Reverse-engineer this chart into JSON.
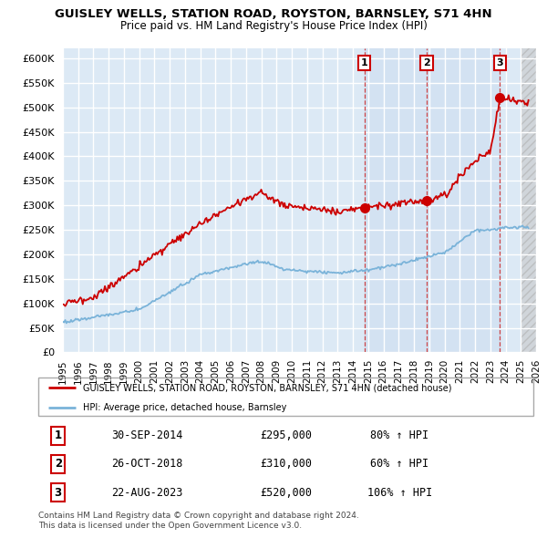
{
  "title": "GUISLEY WELLS, STATION ROAD, ROYSTON, BARNSLEY, S71 4HN",
  "subtitle": "Price paid vs. HM Land Registry's House Price Index (HPI)",
  "ylim": [
    0,
    620000
  ],
  "yticks": [
    0,
    50000,
    100000,
    150000,
    200000,
    250000,
    300000,
    350000,
    400000,
    450000,
    500000,
    550000,
    600000
  ],
  "xlim_start": 1995.0,
  "xlim_end": 2026.0,
  "plot_bg_color": "#dce9f5",
  "grid_color": "#ffffff",
  "sales": [
    {
      "label": "1",
      "date": "30-SEP-2014",
      "year": 2014.75,
      "price": 295000,
      "pct": "80%"
    },
    {
      "label": "2",
      "date": "26-OCT-2018",
      "year": 2018.83,
      "price": 310000,
      "pct": "60%"
    },
    {
      "label": "3",
      "date": "22-AUG-2023",
      "year": 2023.64,
      "price": 520000,
      "pct": "106%"
    }
  ],
  "red_line_color": "#cc0000",
  "blue_line_color": "#7ab3d9",
  "dashed_line_color": "#cc3333",
  "legend_label_red": "GUISLEY WELLS, STATION ROAD, ROYSTON, BARNSLEY, S71 4HN (detached house)",
  "legend_label_blue": "HPI: Average price, detached house, Barnsley",
  "footer1": "Contains HM Land Registry data © Crown copyright and database right 2024.",
  "footer2": "This data is licensed under the Open Government Licence v3.0.",
  "sale_box_color": "#ffffff",
  "sale_box_edge": "#cc0000"
}
